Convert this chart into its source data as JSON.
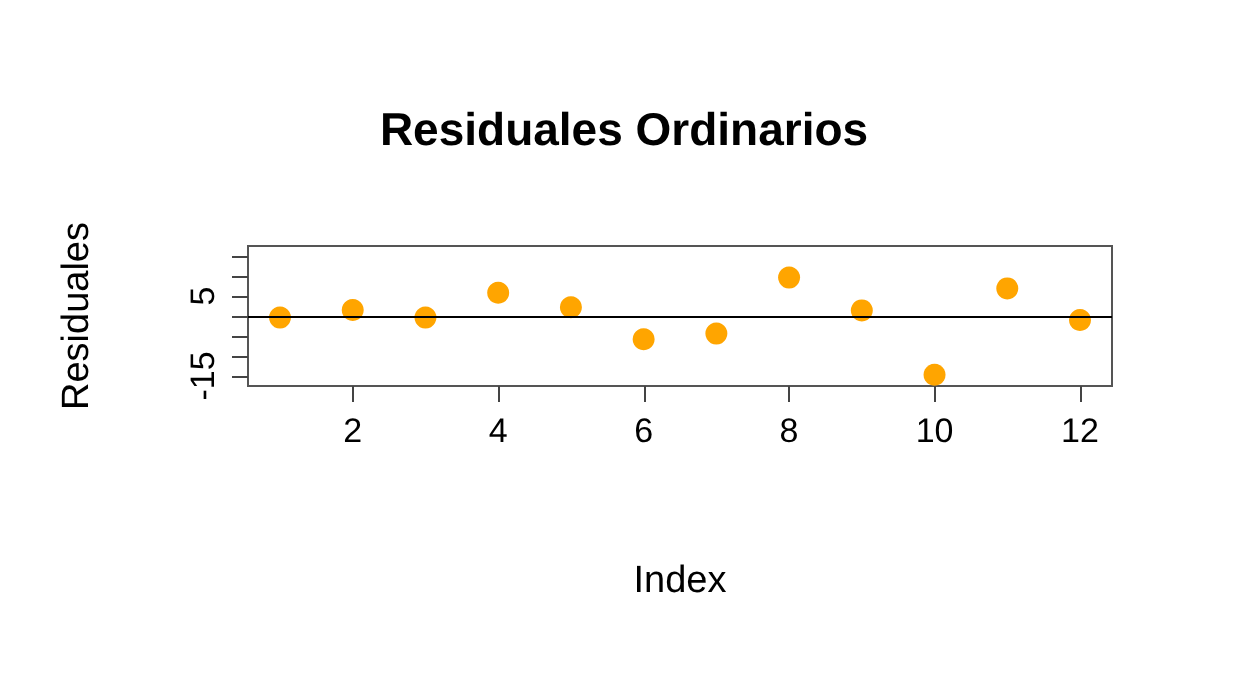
{
  "chart_data": {
    "type": "scatter",
    "title": "Residuales Ordinarios",
    "xlabel": "Index",
    "ylabel": "Residuales",
    "x": [
      1,
      2,
      3,
      4,
      5,
      6,
      7,
      8,
      9,
      10,
      11,
      12
    ],
    "series": [
      {
        "color": "#ffa500",
        "values": [
          -0.4,
          1.5,
          -0.4,
          5.8,
          2.2,
          -5.8,
          -4.4,
          9.6,
          1.4,
          -14.7,
          6.9,
          -1.0
        ]
      }
    ],
    "xlim": [
      0.56,
      12.44
    ],
    "xticks": [
      2,
      4,
      6,
      8,
      10,
      12
    ],
    "ylim": [
      -17.5,
      17.5
    ],
    "yticks": [
      {
        "value": -15,
        "label": "-15"
      },
      {
        "value": -10,
        "label": null
      },
      {
        "value": -5,
        "label": null
      },
      {
        "value": 0,
        "label": null
      },
      5,
      {
        "value": 10,
        "label": null
      },
      {
        "value": 15,
        "label": null
      }
    ],
    "ref_lines": [
      {
        "axis": "y",
        "value": 0,
        "color": "#000000"
      }
    ],
    "marker": "circle",
    "grid": false
  }
}
